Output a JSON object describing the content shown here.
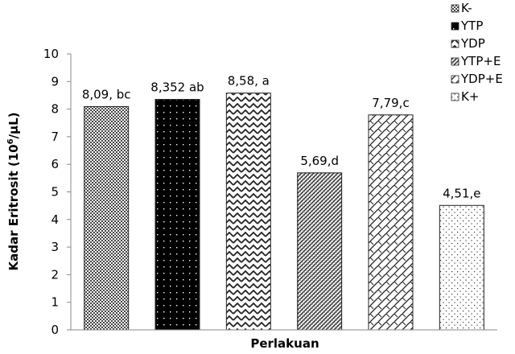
{
  "chart_data": {
    "type": "bar",
    "title": "",
    "xlabel": "Perlakuan",
    "ylabel": "Kadar Eritrosit  (10",
    "ylabel_sup": "6",
    "ylabel_unit": "/µL)",
    "ylim": [
      0,
      10
    ],
    "yticks": [
      "0",
      "1",
      "2",
      "3",
      "4",
      "5",
      "6",
      "7",
      "8",
      "9",
      "10"
    ],
    "grid": false,
    "legend_position": "top-right",
    "categories": [
      "K-",
      "YTP",
      "YDP",
      "YTP+E",
      "YDP+E",
      "K+"
    ],
    "values": [
      8.09,
      8.352,
      8.58,
      5.69,
      7.79,
      4.51
    ],
    "data_labels": [
      "8,09, bc",
      "8,352 ab",
      "8,58, a",
      "5,69,d",
      "7,79,c",
      "4,51,e"
    ],
    "patterns": [
      "crosshatch",
      "black-dots",
      "wave",
      "diagonal-hatch",
      "diamond-hatch",
      "sparse-dots"
    ]
  }
}
